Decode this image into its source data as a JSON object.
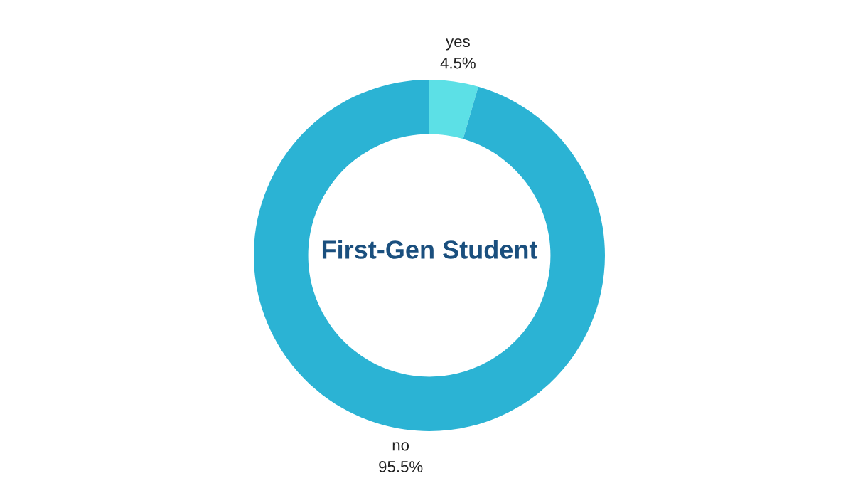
{
  "chart_data": {
    "type": "donut",
    "title": "First-Gen Student",
    "categories": [
      "yes",
      "no"
    ],
    "values": [
      4.5,
      95.5
    ],
    "colors": [
      "#5ce0e6",
      "#2bb3d4"
    ],
    "value_labels": [
      "4.5%",
      "95.5%"
    ],
    "legend": false
  }
}
